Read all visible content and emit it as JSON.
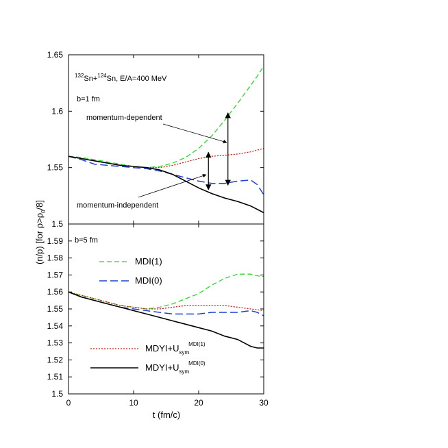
{
  "figure": {
    "ylabel": "(n/p) [for ρ>ρ",
    "ylabel_sub": "0",
    "ylabel_tail": "/8]",
    "xlabel": "t (fm/c)"
  },
  "colors": {
    "MDI1": "#22dd22",
    "MDI0": "#1f3fd6",
    "MDYI1": "#e01010",
    "MDYI0": "#000000"
  },
  "chart_data": [
    {
      "type": "line",
      "panel": "top",
      "title": "",
      "annotations": {
        "reaction_pre1": "132",
        "reaction_mid1": "Sn+",
        "reaction_pre2": "124",
        "reaction_mid2": "Sn, E/A=400 MeV",
        "impact": "b=1 fm",
        "md_label": "momentum-dependent",
        "mi_label": "momentum-independent"
      },
      "xlim": [
        0,
        30
      ],
      "ylim": [
        1.5,
        1.65
      ],
      "yticks": [
        "1.5",
        "1.55",
        "1.6",
        "1.65"
      ],
      "ytick_vals": [
        1.5,
        1.55,
        1.6,
        1.65
      ],
      "arrows": [
        {
          "x": 21.5,
          "y1": 1.5305,
          "y2": 1.5635
        },
        {
          "x": 24.5,
          "y1": 1.5345,
          "y2": 1.5985
        }
      ],
      "series": [
        {
          "key": "MDI1",
          "style": "dashed",
          "points": [
            [
              0,
              1.56
            ],
            [
              2,
              1.559
            ],
            [
              4,
              1.557
            ],
            [
              6,
              1.555
            ],
            [
              8,
              1.553
            ],
            [
              10,
              1.551
            ],
            [
              12,
              1.55
            ],
            [
              14,
              1.551
            ],
            [
              16,
              1.554
            ],
            [
              18,
              1.559
            ],
            [
              20,
              1.567
            ],
            [
              22,
              1.578
            ],
            [
              24,
              1.592
            ],
            [
              26,
              1.607
            ],
            [
              28,
              1.623
            ],
            [
              29,
              1.631
            ],
            [
              30,
              1.64
            ]
          ]
        },
        {
          "key": "MDI0",
          "style": "longdash",
          "points": [
            [
              0,
              1.56
            ],
            [
              2,
              1.557
            ],
            [
              4,
              1.553
            ],
            [
              6,
              1.552
            ],
            [
              8,
              1.551
            ],
            [
              10,
              1.55
            ],
            [
              12,
              1.549
            ],
            [
              14,
              1.547
            ],
            [
              16,
              1.544
            ],
            [
              18,
              1.541
            ],
            [
              20,
              1.538
            ],
            [
              22,
              1.536
            ],
            [
              24,
              1.536
            ],
            [
              26,
              1.538
            ],
            [
              28,
              1.539
            ],
            [
              29,
              1.535
            ],
            [
              30,
              1.526
            ]
          ]
        },
        {
          "key": "MDYI1",
          "style": "dotted",
          "points": [
            [
              0,
              1.56
            ],
            [
              2,
              1.558
            ],
            [
              4,
              1.556
            ],
            [
              6,
              1.554
            ],
            [
              8,
              1.552
            ],
            [
              10,
              1.551
            ],
            [
              12,
              1.55
            ],
            [
              14,
              1.55
            ],
            [
              16,
              1.552
            ],
            [
              18,
              1.555
            ],
            [
              20,
              1.558
            ],
            [
              22,
              1.56
            ],
            [
              24,
              1.561
            ],
            [
              26,
              1.562
            ],
            [
              28,
              1.564
            ],
            [
              30,
              1.567
            ]
          ]
        },
        {
          "key": "MDYI0",
          "style": "solid",
          "points": [
            [
              0,
              1.56
            ],
            [
              2,
              1.558
            ],
            [
              4,
              1.556
            ],
            [
              6,
              1.554
            ],
            [
              8,
              1.552
            ],
            [
              10,
              1.551
            ],
            [
              12,
              1.55
            ],
            [
              14,
              1.548
            ],
            [
              16,
              1.544
            ],
            [
              18,
              1.538
            ],
            [
              20,
              1.532
            ],
            [
              22,
              1.527
            ],
            [
              24,
              1.523
            ],
            [
              26,
              1.52
            ],
            [
              28,
              1.516
            ],
            [
              30,
              1.51
            ]
          ]
        }
      ]
    },
    {
      "type": "line",
      "panel": "bottom",
      "title": "",
      "annotations": {
        "impact": "b=5 fm"
      },
      "xlim": [
        0,
        30
      ],
      "ylim": [
        1.5,
        1.6
      ],
      "yticks": [
        "1.5",
        "1.51",
        "1.52",
        "1.53",
        "1.54",
        "1.55",
        "1.56",
        "1.57",
        "1.58",
        "1.59"
      ],
      "ytick_vals": [
        1.5,
        1.51,
        1.52,
        1.53,
        1.54,
        1.55,
        1.56,
        1.57,
        1.58,
        1.59
      ],
      "xticks": [
        "0",
        "10",
        "20",
        "30"
      ],
      "xtick_vals": [
        0,
        10,
        20,
        30
      ],
      "legend": [
        {
          "key": "MDI1",
          "text": "MDI(1)"
        },
        {
          "key": "MDI0",
          "text": "MDI(0)"
        },
        {
          "key": "MDYI1",
          "text": "MDYI+U",
          "sub": "sym",
          "sup": "MDI(1)"
        },
        {
          "key": "MDYI0",
          "text": "MDYI+U",
          "sub": "sym",
          "sup": "MDI(0)"
        }
      ],
      "series": [
        {
          "key": "MDI1",
          "style": "dashed",
          "points": [
            [
              0,
              1.56
            ],
            [
              2,
              1.558
            ],
            [
              4,
              1.556
            ],
            [
              6,
              1.554
            ],
            [
              8,
              1.552
            ],
            [
              10,
              1.551
            ],
            [
              12,
              1.55
            ],
            [
              14,
              1.551
            ],
            [
              16,
              1.553
            ],
            [
              18,
              1.556
            ],
            [
              20,
              1.559
            ],
            [
              22,
              1.564
            ],
            [
              24,
              1.568
            ],
            [
              26,
              1.5705
            ],
            [
              28,
              1.5705
            ],
            [
              29,
              1.5695
            ],
            [
              30,
              1.569
            ]
          ]
        },
        {
          "key": "MDI0",
          "style": "longdash",
          "points": [
            [
              0,
              1.56
            ],
            [
              2,
              1.557
            ],
            [
              4,
              1.555
            ],
            [
              6,
              1.553
            ],
            [
              8,
              1.551
            ],
            [
              10,
              1.55
            ],
            [
              12,
              1.549
            ],
            [
              14,
              1.548
            ],
            [
              16,
              1.547
            ],
            [
              18,
              1.547
            ],
            [
              20,
              1.547
            ],
            [
              22,
              1.548
            ],
            [
              24,
              1.548
            ],
            [
              26,
              1.548
            ],
            [
              28,
              1.549
            ],
            [
              29,
              1.548
            ],
            [
              30,
              1.546
            ]
          ]
        },
        {
          "key": "MDYI1",
          "style": "dotted",
          "points": [
            [
              0,
              1.56
            ],
            [
              2,
              1.558
            ],
            [
              4,
              1.556
            ],
            [
              6,
              1.554
            ],
            [
              8,
              1.552
            ],
            [
              10,
              1.551
            ],
            [
              12,
              1.55
            ],
            [
              14,
              1.55
            ],
            [
              16,
              1.551
            ],
            [
              18,
              1.552
            ],
            [
              20,
              1.552
            ],
            [
              22,
              1.552
            ],
            [
              24,
              1.552
            ],
            [
              26,
              1.551
            ],
            [
              28,
              1.55
            ],
            [
              30,
              1.549
            ]
          ]
        },
        {
          "key": "MDYI0",
          "style": "solid",
          "points": [
            [
              0,
              1.56
            ],
            [
              2,
              1.557
            ],
            [
              4,
              1.555
            ],
            [
              6,
              1.553
            ],
            [
              8,
              1.551
            ],
            [
              10,
              1.549
            ],
            [
              12,
              1.547
            ],
            [
              14,
              1.545
            ],
            [
              16,
              1.543
            ],
            [
              18,
              1.541
            ],
            [
              20,
              1.539
            ],
            [
              22,
              1.537
            ],
            [
              24,
              1.534
            ],
            [
              26,
              1.532
            ],
            [
              28,
              1.528
            ],
            [
              29,
              1.527
            ],
            [
              30,
              1.527
            ]
          ]
        }
      ]
    }
  ]
}
